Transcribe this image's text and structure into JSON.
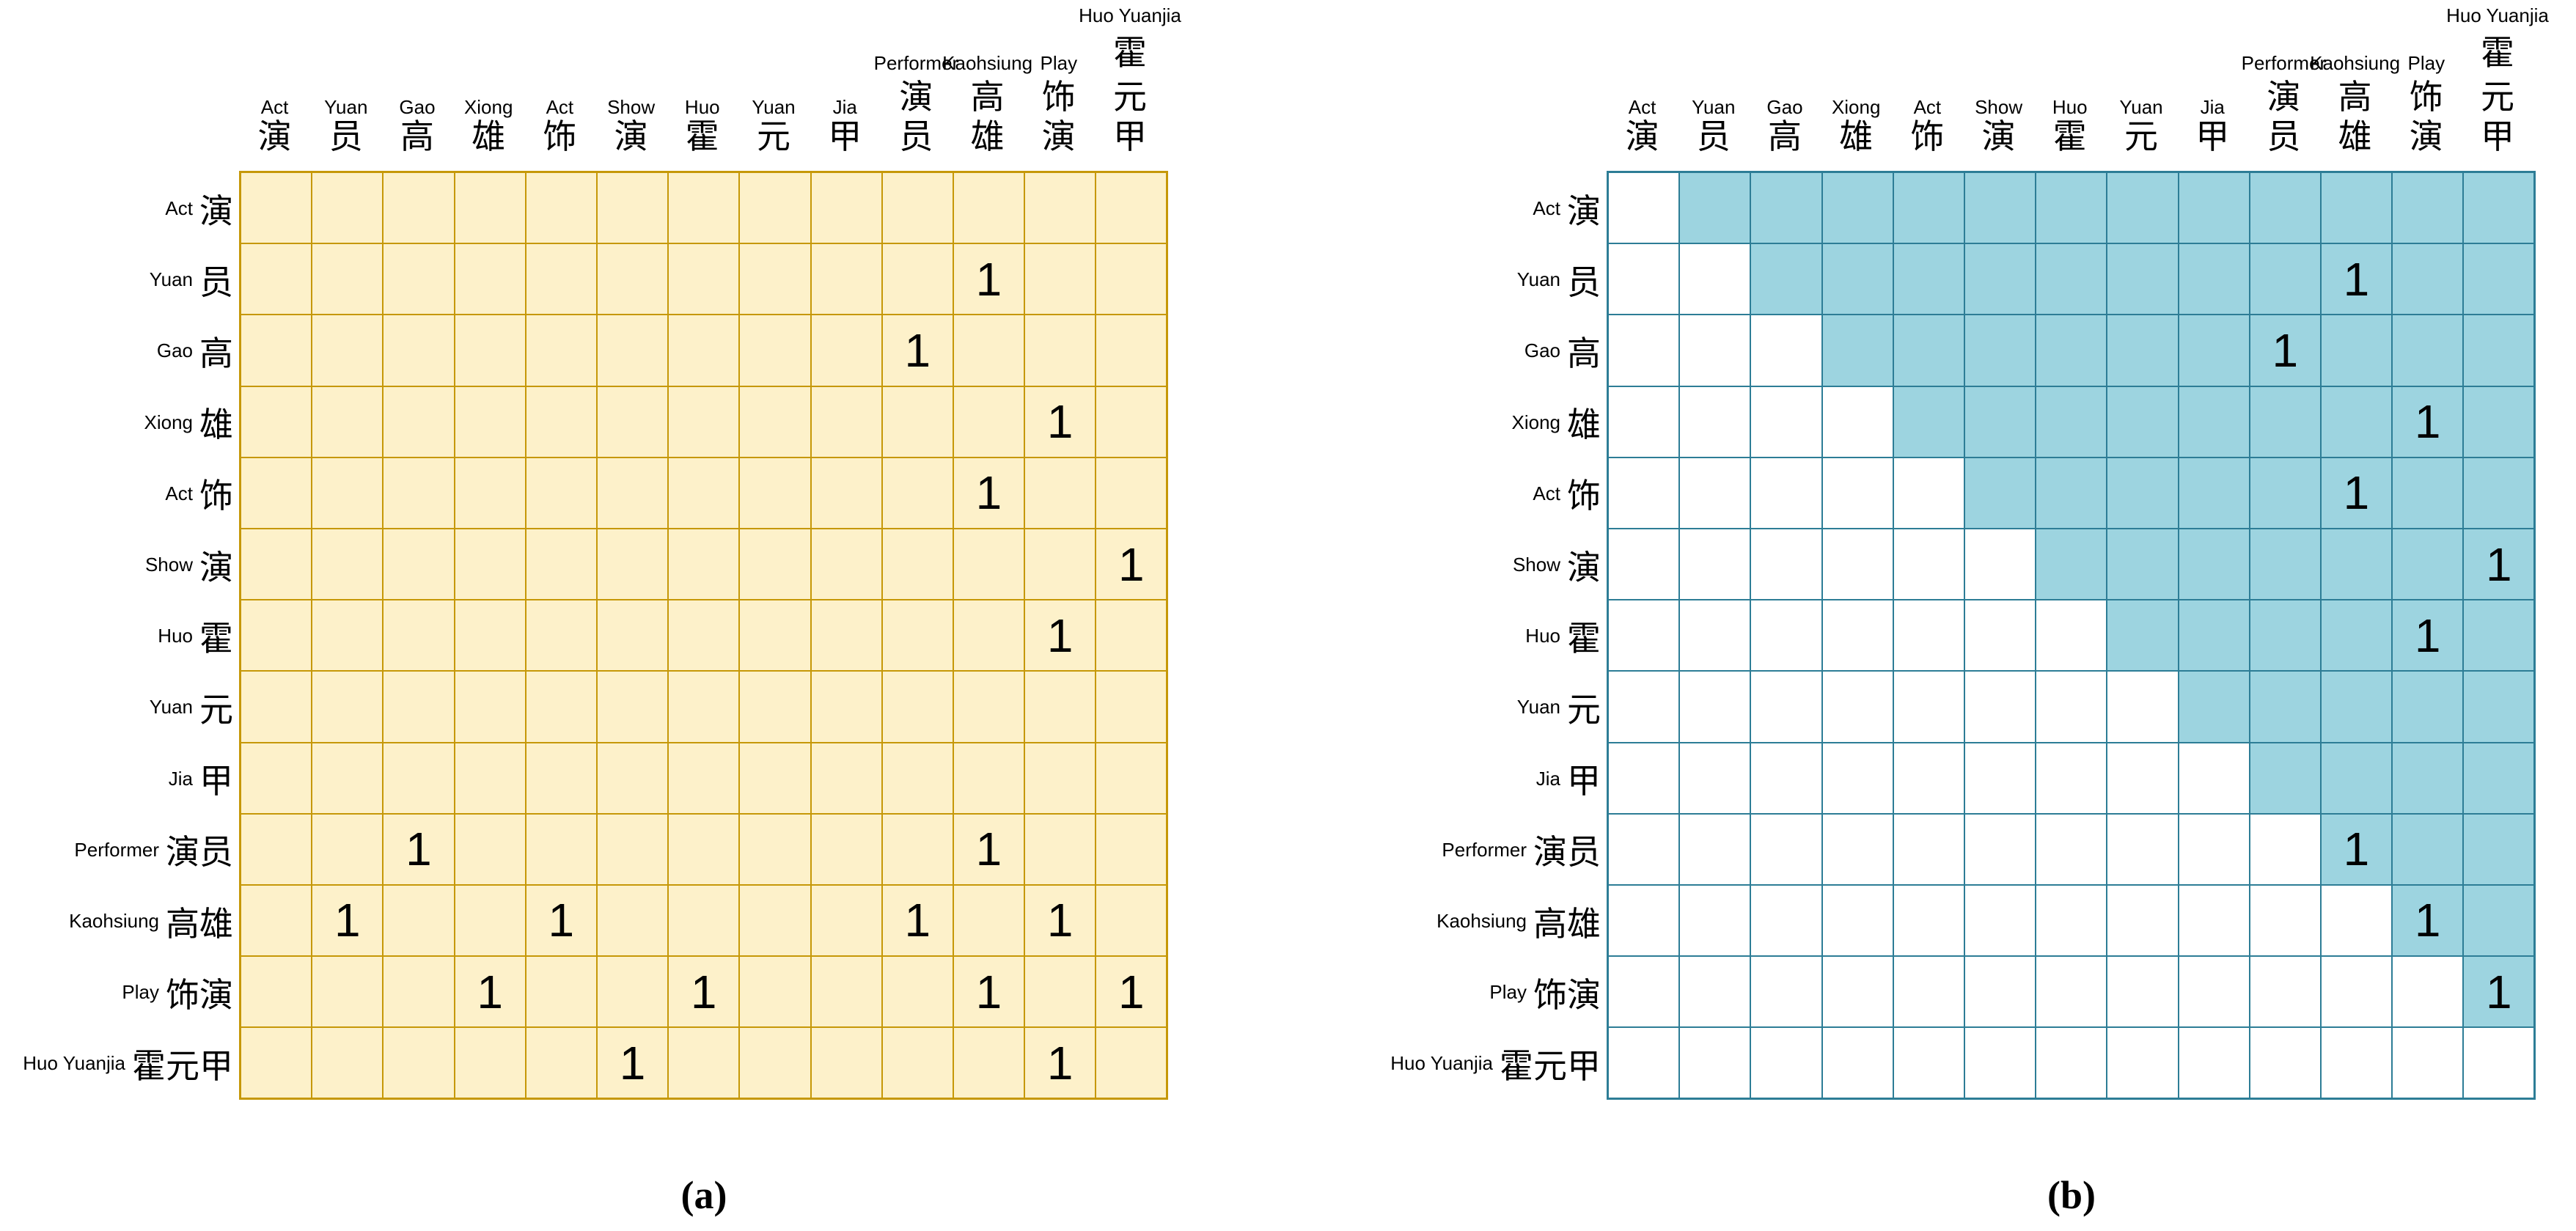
{
  "terms": [
    {
      "en": "Act",
      "zh": "演"
    },
    {
      "en": "Yuan",
      "zh": "员"
    },
    {
      "en": "Gao",
      "zh": "高"
    },
    {
      "en": "Xiong",
      "zh": "雄"
    },
    {
      "en": "Act",
      "zh": "饰"
    },
    {
      "en": "Show",
      "zh": "演"
    },
    {
      "en": "Huo",
      "zh": "霍"
    },
    {
      "en": "Yuan",
      "zh": "元"
    },
    {
      "en": "Jia",
      "zh": "甲"
    },
    {
      "en": "Performer",
      "zh": "演员"
    },
    {
      "en": "Kaohsiung",
      "zh": "高雄"
    },
    {
      "en": "Play",
      "zh": "饰演"
    },
    {
      "en": "Huo Yuanjia",
      "zh": "霍元甲"
    }
  ],
  "panels": [
    {
      "name": "a",
      "caption": "(a)",
      "mode": "full",
      "cell_fill": "#FDF1CA",
      "upper_fill": "#FDF1CA",
      "line_color": "#C69808",
      "value_label": "1",
      "ones": [
        [
          2,
          11
        ],
        [
          3,
          10
        ],
        [
          4,
          12
        ],
        [
          5,
          11
        ],
        [
          6,
          13
        ],
        [
          7,
          12
        ],
        [
          10,
          3
        ],
        [
          10,
          11
        ],
        [
          11,
          2
        ],
        [
          11,
          5
        ],
        [
          11,
          10
        ],
        [
          11,
          12
        ],
        [
          12,
          4
        ],
        [
          12,
          7
        ],
        [
          12,
          11
        ],
        [
          12,
          13
        ],
        [
          13,
          6
        ],
        [
          13,
          12
        ]
      ]
    },
    {
      "name": "b",
      "caption": "(b)",
      "mode": "upper_triangle",
      "cell_fill": "#FFFFFF",
      "upper_fill": "#9DD4E0",
      "line_color": "#2D7D96",
      "value_label": "1",
      "ones": [
        [
          2,
          11
        ],
        [
          3,
          10
        ],
        [
          4,
          12
        ],
        [
          5,
          11
        ],
        [
          6,
          13
        ],
        [
          7,
          12
        ],
        [
          10,
          11
        ],
        [
          11,
          12
        ],
        [
          12,
          13
        ]
      ]
    }
  ],
  "chart_data": [
    {
      "type": "heatmap",
      "title": "(a)",
      "x_labels": [
        "Act 演",
        "Yuan 员",
        "Gao 高",
        "Xiong 雄",
        "Act 饰",
        "Show 演",
        "Huo 霍",
        "Yuan 元",
        "Jia 甲",
        "Performer 演员",
        "Kaohsiung 高雄",
        "Play 饰演",
        "Huo Yuanjia 霍元甲"
      ],
      "y_labels": [
        "Act 演",
        "Yuan 员",
        "Gao 高",
        "Xiong 雄",
        "Act 饰",
        "Show 演",
        "Huo 霍",
        "Yuan 元",
        "Jia 甲",
        "Performer 演员",
        "Kaohsiung 高雄",
        "Play 饰演",
        "Huo Yuanjia 霍元甲"
      ],
      "matrix": [
        [
          0,
          0,
          0,
          0,
          0,
          0,
          0,
          0,
          0,
          0,
          0,
          0,
          0
        ],
        [
          0,
          0,
          0,
          0,
          0,
          0,
          0,
          0,
          0,
          0,
          1,
          0,
          0
        ],
        [
          0,
          0,
          0,
          0,
          0,
          0,
          0,
          0,
          0,
          1,
          0,
          0,
          0
        ],
        [
          0,
          0,
          0,
          0,
          0,
          0,
          0,
          0,
          0,
          0,
          0,
          1,
          0
        ],
        [
          0,
          0,
          0,
          0,
          0,
          0,
          0,
          0,
          0,
          0,
          1,
          0,
          0
        ],
        [
          0,
          0,
          0,
          0,
          0,
          0,
          0,
          0,
          0,
          0,
          0,
          0,
          1
        ],
        [
          0,
          0,
          0,
          0,
          0,
          0,
          0,
          0,
          0,
          0,
          0,
          1,
          0
        ],
        [
          0,
          0,
          0,
          0,
          0,
          0,
          0,
          0,
          0,
          0,
          0,
          0,
          0
        ],
        [
          0,
          0,
          0,
          0,
          0,
          0,
          0,
          0,
          0,
          0,
          0,
          0,
          0
        ],
        [
          0,
          0,
          1,
          0,
          0,
          0,
          0,
          0,
          0,
          0,
          1,
          0,
          0
        ],
        [
          0,
          1,
          0,
          0,
          1,
          0,
          0,
          0,
          0,
          1,
          0,
          1,
          0
        ],
        [
          0,
          0,
          0,
          1,
          0,
          0,
          1,
          0,
          0,
          0,
          1,
          0,
          1
        ],
        [
          0,
          0,
          0,
          0,
          0,
          1,
          0,
          0,
          0,
          0,
          0,
          1,
          0
        ]
      ],
      "notes": "symmetric co-occurrence matrix; all cells filled cream, grid lines gold, value 1 shown in listed cells",
      "legend_position": "none",
      "grid": true
    },
    {
      "type": "heatmap",
      "title": "(b)",
      "x_labels": [
        "Act 演",
        "Yuan 员",
        "Gao 高",
        "Xiong 雄",
        "Act 饰",
        "Show 演",
        "Huo 霍",
        "Yuan 元",
        "Jia 甲",
        "Performer 演员",
        "Kaohsiung 高雄",
        "Play 饰演",
        "Huo Yuanjia 霍元甲"
      ],
      "y_labels": [
        "Act 演",
        "Yuan 员",
        "Gao 高",
        "Xiong 雄",
        "Act 饰",
        "Show 演",
        "Huo 霍",
        "Yuan 元",
        "Jia 甲",
        "Performer 演员",
        "Kaohsiung 高雄",
        "Play 饰演",
        "Huo Yuanjia 霍元甲"
      ],
      "matrix": [
        [
          0,
          0,
          0,
          0,
          0,
          0,
          0,
          0,
          0,
          0,
          0,
          0,
          0
        ],
        [
          0,
          0,
          0,
          0,
          0,
          0,
          0,
          0,
          0,
          0,
          1,
          0,
          0
        ],
        [
          0,
          0,
          0,
          0,
          0,
          0,
          0,
          0,
          0,
          1,
          0,
          0,
          0
        ],
        [
          0,
          0,
          0,
          0,
          0,
          0,
          0,
          0,
          0,
          0,
          0,
          1,
          0
        ],
        [
          0,
          0,
          0,
          0,
          0,
          0,
          0,
          0,
          0,
          0,
          1,
          0,
          0
        ],
        [
          0,
          0,
          0,
          0,
          0,
          0,
          0,
          0,
          0,
          0,
          0,
          0,
          1
        ],
        [
          0,
          0,
          0,
          0,
          0,
          0,
          0,
          0,
          0,
          0,
          0,
          1,
          0
        ],
        [
          0,
          0,
          0,
          0,
          0,
          0,
          0,
          0,
          0,
          0,
          0,
          0,
          0
        ],
        [
          0,
          0,
          0,
          0,
          0,
          0,
          0,
          0,
          0,
          0,
          0,
          0,
          0
        ],
        [
          0,
          0,
          0,
          0,
          0,
          0,
          0,
          0,
          0,
          0,
          1,
          0,
          0
        ],
        [
          0,
          0,
          0,
          0,
          0,
          0,
          0,
          0,
          0,
          0,
          0,
          1,
          0
        ],
        [
          0,
          0,
          0,
          0,
          0,
          0,
          0,
          0,
          0,
          0,
          0,
          0,
          1
        ],
        [
          0,
          0,
          0,
          0,
          0,
          0,
          0,
          0,
          0,
          0,
          0,
          0,
          0
        ]
      ],
      "notes": "upper triangle (col > row) shaded blue, lower triangle and diagonal white; value 1 shown only above diagonal",
      "shaded_region": "upper_triangle_excluding_diagonal",
      "legend_position": "none",
      "grid": true
    }
  ]
}
